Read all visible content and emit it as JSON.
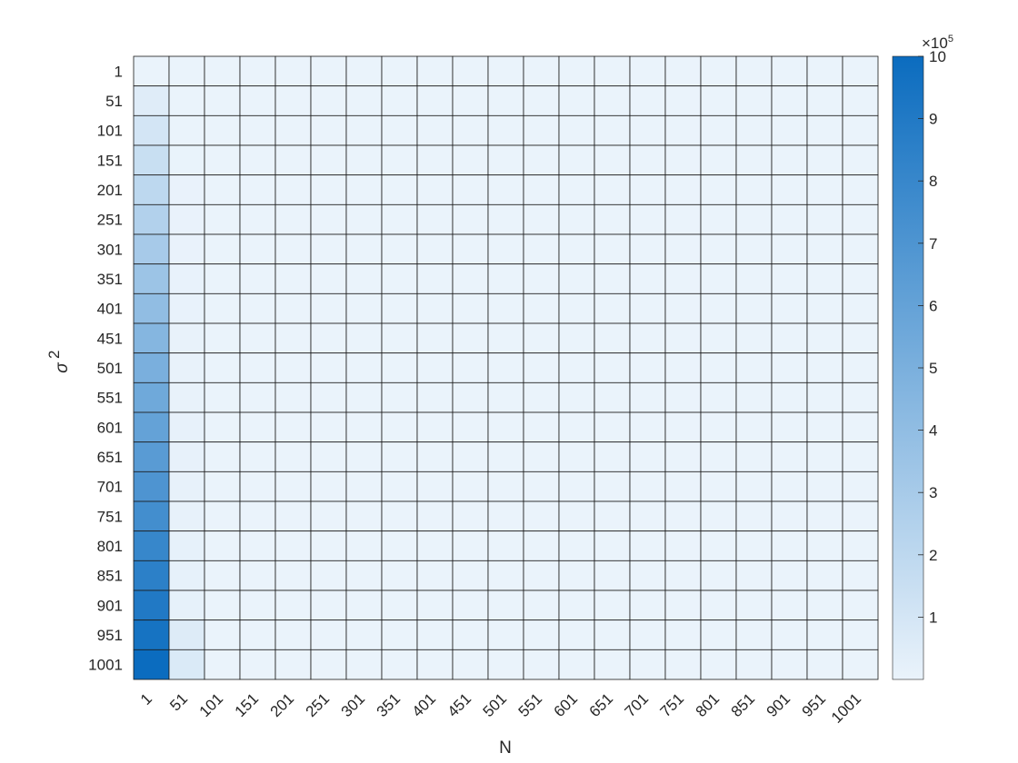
{
  "chart_data": {
    "type": "heatmap",
    "title": "",
    "xlabel": "N",
    "ylabel": "σ",
    "ylabel_superscript": "2",
    "x_categories": [
      "1",
      "51",
      "101",
      "151",
      "201",
      "251",
      "301",
      "351",
      "401",
      "451",
      "501",
      "551",
      "601",
      "651",
      "701",
      "751",
      "801",
      "851",
      "901",
      "951",
      "1001"
    ],
    "y_categories": [
      "1",
      "51",
      "101",
      "151",
      "201",
      "251",
      "301",
      "351",
      "401",
      "451",
      "501",
      "551",
      "601",
      "651",
      "701",
      "751",
      "801",
      "851",
      "901",
      "951",
      "1001"
    ],
    "first_column_values": [
      1000,
      51000,
      101000,
      151000,
      201000,
      251000,
      301000,
      351000,
      401000,
      451000,
      501000,
      551000,
      601000,
      651000,
      701000,
      751000,
      801000,
      851000,
      901000,
      951000,
      1001000
    ],
    "second_column_values": [
      20,
      1000,
      2000,
      3000,
      4000,
      5000,
      6000,
      7000,
      8000,
      9000,
      10000,
      11000,
      12000,
      13000,
      14000,
      15000,
      16000,
      17000,
      18000,
      60000,
      70000
    ],
    "other_columns_value": 0,
    "colormap": {
      "low": "#eaf3fb",
      "high": "#0b6cbf"
    },
    "colorbar": {
      "range": [
        0,
        1000000
      ],
      "ticks": [
        "1",
        "2",
        "3",
        "4",
        "5",
        "6",
        "7",
        "8",
        "9",
        "10"
      ],
      "exponent_base": "×10",
      "exponent_power": "5"
    },
    "grid": true
  }
}
